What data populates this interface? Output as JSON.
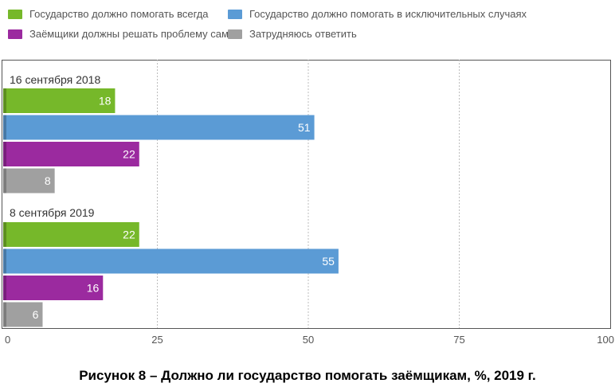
{
  "chart_data": {
    "type": "bar",
    "orientation": "horizontal",
    "categories": [
      "16 сентября 2018",
      "8 сентября 2019"
    ],
    "series": [
      {
        "name": "Государство должно помогать всегда",
        "color": "#76b82a",
        "values": [
          18,
          22
        ]
      },
      {
        "name": "Государство должно помогать в исключительных случаях",
        "color": "#5b9bd5",
        "values": [
          51,
          55
        ]
      },
      {
        "name": "Заёмщики должны решать проблему сами",
        "color": "#9b2a9f",
        "values": [
          22,
          16
        ]
      },
      {
        "name": "Затрудняюсь ответить",
        "color": "#a0a0a0",
        "values": [
          8,
          6
        ]
      }
    ],
    "xlim": [
      0,
      100
    ],
    "xticks": [
      "0",
      "25",
      "50",
      "75",
      "100"
    ],
    "grid": true,
    "legend_position": "top",
    "caption": "Рисунок 8 – Должно ли государство помогать заёмщикам, %, 2019 г."
  }
}
